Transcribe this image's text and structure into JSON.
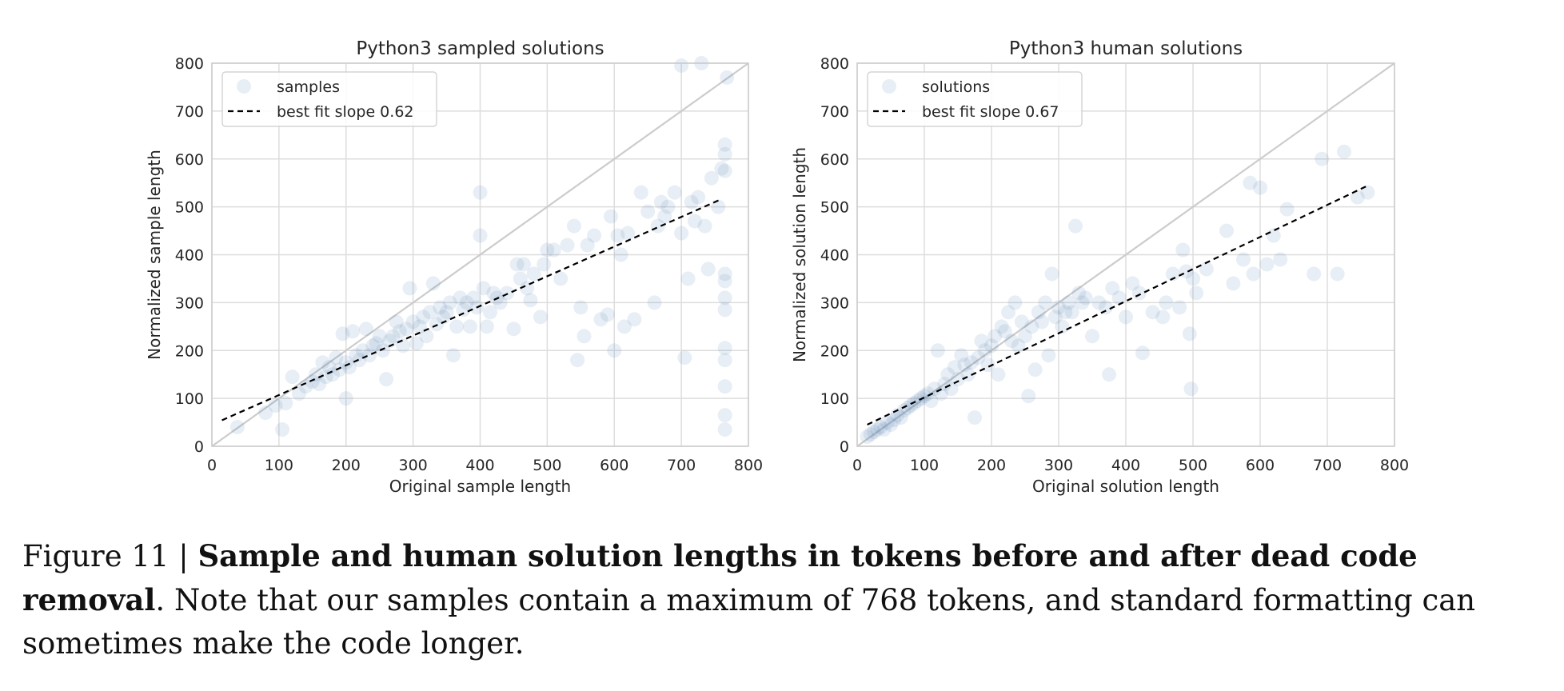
{
  "chart_data": [
    {
      "type": "scatter",
      "title": "Python3 sampled solutions",
      "xlabel": "Original sample length",
      "ylabel": "Normalized sample length",
      "xlim": [
        0,
        800
      ],
      "ylim": [
        0,
        800
      ],
      "xticks": [
        0,
        100,
        200,
        300,
        400,
        500,
        600,
        700,
        800
      ],
      "yticks": [
        0,
        100,
        200,
        300,
        400,
        500,
        600,
        700,
        800
      ],
      "grid": true,
      "legend_position": "top-left",
      "colors": {
        "points": "#4a7fb5",
        "fit": "#000000",
        "identity": "#cccccc"
      },
      "series": [
        {
          "name": "samples",
          "kind": "points",
          "points": [
            [
              38,
              40
            ],
            [
              80,
              70
            ],
            [
              95,
              85
            ],
            [
              105,
              35
            ],
            [
              110,
              90
            ],
            [
              120,
              145
            ],
            [
              130,
              110
            ],
            [
              140,
              125
            ],
            [
              150,
              135
            ],
            [
              155,
              150
            ],
            [
              160,
              130
            ],
            [
              165,
              175
            ],
            [
              170,
              145
            ],
            [
              175,
              165
            ],
            [
              180,
              150
            ],
            [
              185,
              185
            ],
            [
              190,
              160
            ],
            [
              195,
              235
            ],
            [
              200,
              100
            ],
            [
              200,
              175
            ],
            [
              205,
              165
            ],
            [
              210,
              240
            ],
            [
              215,
              190
            ],
            [
              220,
              180
            ],
            [
              225,
              200
            ],
            [
              230,
              245
            ],
            [
              235,
              190
            ],
            [
              240,
              210
            ],
            [
              245,
              215
            ],
            [
              250,
              230
            ],
            [
              255,
              200
            ],
            [
              260,
              140
            ],
            [
              265,
              220
            ],
            [
              270,
              230
            ],
            [
              275,
              260
            ],
            [
              280,
              240
            ],
            [
              285,
              210
            ],
            [
              290,
              245
            ],
            [
              295,
              330
            ],
            [
              300,
              260
            ],
            [
              305,
              215
            ],
            [
              310,
              250
            ],
            [
              315,
              270
            ],
            [
              320,
              230
            ],
            [
              325,
              280
            ],
            [
              330,
              340
            ],
            [
              335,
              255
            ],
            [
              340,
              290
            ],
            [
              345,
              270
            ],
            [
              350,
              280
            ],
            [
              355,
              300
            ],
            [
              360,
              190
            ],
            [
              365,
              250
            ],
            [
              370,
              310
            ],
            [
              375,
              285
            ],
            [
              380,
              300
            ],
            [
              385,
              250
            ],
            [
              390,
              310
            ],
            [
              395,
              290
            ],
            [
              400,
              440
            ],
            [
              400,
              530
            ],
            [
              405,
              330
            ],
            [
              410,
              250
            ],
            [
              415,
              280
            ],
            [
              420,
              320
            ],
            [
              425,
              310
            ],
            [
              430,
              300
            ],
            [
              440,
              320
            ],
            [
              450,
              245
            ],
            [
              455,
              380
            ],
            [
              460,
              350
            ],
            [
              465,
              380
            ],
            [
              470,
              330
            ],
            [
              475,
              305
            ],
            [
              480,
              360
            ],
            [
              490,
              270
            ],
            [
              495,
              380
            ],
            [
              500,
              410
            ],
            [
              510,
              410
            ],
            [
              520,
              350
            ],
            [
              530,
              420
            ],
            [
              540,
              460
            ],
            [
              545,
              180
            ],
            [
              550,
              290
            ],
            [
              555,
              230
            ],
            [
              560,
              420
            ],
            [
              570,
              440
            ],
            [
              580,
              265
            ],
            [
              590,
              275
            ],
            [
              595,
              480
            ],
            [
              600,
              200
            ],
            [
              605,
              440
            ],
            [
              610,
              400
            ],
            [
              615,
              250
            ],
            [
              620,
              445
            ],
            [
              630,
              265
            ],
            [
              640,
              530
            ],
            [
              650,
              490
            ],
            [
              660,
              300
            ],
            [
              665,
              460
            ],
            [
              670,
              510
            ],
            [
              675,
              480
            ],
            [
              680,
              500
            ],
            [
              690,
              530
            ],
            [
              700,
              445
            ],
            [
              700,
              795
            ],
            [
              705,
              185
            ],
            [
              710,
              350
            ],
            [
              715,
              510
            ],
            [
              720,
              470
            ],
            [
              725,
              520
            ],
            [
              730,
              800
            ],
            [
              735,
              460
            ],
            [
              740,
              370
            ],
            [
              745,
              560
            ],
            [
              755,
              500
            ],
            [
              760,
              580
            ],
            [
              765,
              630
            ],
            [
              765,
              610
            ],
            [
              765,
              575
            ],
            [
              765,
              360
            ],
            [
              765,
              345
            ],
            [
              765,
              310
            ],
            [
              765,
              285
            ],
            [
              765,
              205
            ],
            [
              765,
              180
            ],
            [
              765,
              125
            ],
            [
              765,
              65
            ],
            [
              765,
              35
            ],
            [
              768,
              770
            ]
          ]
        },
        {
          "name": "best fit slope 0.62",
          "kind": "fit",
          "slope": 0.62,
          "intercept": 45,
          "x_range": [
            15,
            760
          ]
        }
      ]
    },
    {
      "type": "scatter",
      "title": "Python3 human solutions",
      "xlabel": "Original solution length",
      "ylabel": "Normalized solution length",
      "xlim": [
        0,
        800
      ],
      "ylim": [
        0,
        800
      ],
      "xticks": [
        0,
        100,
        200,
        300,
        400,
        500,
        600,
        700,
        800
      ],
      "yticks": [
        0,
        100,
        200,
        300,
        400,
        500,
        600,
        700,
        800
      ],
      "grid": true,
      "legend_position": "top-left",
      "colors": {
        "points": "#4a7fb5",
        "fit": "#000000",
        "identity": "#cccccc"
      },
      "series": [
        {
          "name": "solutions",
          "kind": "points",
          "points": [
            [
              15,
              20
            ],
            [
              20,
              25
            ],
            [
              25,
              30
            ],
            [
              30,
              35
            ],
            [
              35,
              40
            ],
            [
              40,
              35
            ],
            [
              45,
              50
            ],
            [
              50,
              45
            ],
            [
              55,
              55
            ],
            [
              60,
              65
            ],
            [
              65,
              60
            ],
            [
              70,
              75
            ],
            [
              75,
              80
            ],
            [
              80,
              85
            ],
            [
              85,
              90
            ],
            [
              90,
              95
            ],
            [
              95,
              100
            ],
            [
              100,
              105
            ],
            [
              105,
              110
            ],
            [
              110,
              95
            ],
            [
              115,
              120
            ],
            [
              120,
              200
            ],
            [
              125,
              110
            ],
            [
              130,
              130
            ],
            [
              135,
              150
            ],
            [
              140,
              120
            ],
            [
              145,
              165
            ],
            [
              150,
              140
            ],
            [
              155,
              190
            ],
            [
              160,
              170
            ],
            [
              165,
              150
            ],
            [
              170,
              175
            ],
            [
              175,
              60
            ],
            [
              180,
              185
            ],
            [
              185,
              220
            ],
            [
              190,
              200
            ],
            [
              195,
              170
            ],
            [
              200,
              210
            ],
            [
              205,
              230
            ],
            [
              210,
              150
            ],
            [
              215,
              250
            ],
            [
              220,
              240
            ],
            [
              225,
              280
            ],
            [
              230,
              220
            ],
            [
              235,
              300
            ],
            [
              240,
              210
            ],
            [
              245,
              260
            ],
            [
              250,
              230
            ],
            [
              255,
              105
            ],
            [
              260,
              250
            ],
            [
              265,
              160
            ],
            [
              270,
              280
            ],
            [
              275,
              260
            ],
            [
              280,
              300
            ],
            [
              285,
              190
            ],
            [
              290,
              360
            ],
            [
              295,
              270
            ],
            [
              300,
              290
            ],
            [
              305,
              250
            ],
            [
              310,
              280
            ],
            [
              315,
              300
            ],
            [
              320,
              280
            ],
            [
              325,
              460
            ],
            [
              330,
              320
            ],
            [
              335,
              300
            ],
            [
              340,
              310
            ],
            [
              350,
              230
            ],
            [
              360,
              300
            ],
            [
              370,
              290
            ],
            [
              375,
              150
            ],
            [
              380,
              330
            ],
            [
              390,
              310
            ],
            [
              400,
              270
            ],
            [
              410,
              340
            ],
            [
              420,
              320
            ],
            [
              425,
              195
            ],
            [
              440,
              280
            ],
            [
              455,
              270
            ],
            [
              460,
              300
            ],
            [
              470,
              360
            ],
            [
              480,
              290
            ],
            [
              485,
              410
            ],
            [
              490,
              365
            ],
            [
              495,
              235
            ],
            [
              497,
              120
            ],
            [
              500,
              350
            ],
            [
              505,
              320
            ],
            [
              520,
              370
            ],
            [
              550,
              450
            ],
            [
              560,
              340
            ],
            [
              575,
              390
            ],
            [
              585,
              550
            ],
            [
              590,
              360
            ],
            [
              600,
              540
            ],
            [
              610,
              380
            ],
            [
              620,
              440
            ],
            [
              630,
              390
            ],
            [
              640,
              495
            ],
            [
              680,
              360
            ],
            [
              692,
              600
            ],
            [
              715,
              360
            ],
            [
              725,
              615
            ],
            [
              745,
              520
            ],
            [
              760,
              530
            ]
          ]
        },
        {
          "name": "best fit slope 0.67",
          "kind": "fit",
          "slope": 0.67,
          "intercept": 35,
          "x_range": [
            15,
            760
          ]
        }
      ]
    }
  ],
  "caption": {
    "label": "Figure 11 |",
    "bold": "Sample and human solution lengths in tokens before and after dead code removal",
    "period": ".",
    "text": "Note that our samples contain a maximum of 768 tokens, and standard formatting can sometimes make the code longer."
  }
}
